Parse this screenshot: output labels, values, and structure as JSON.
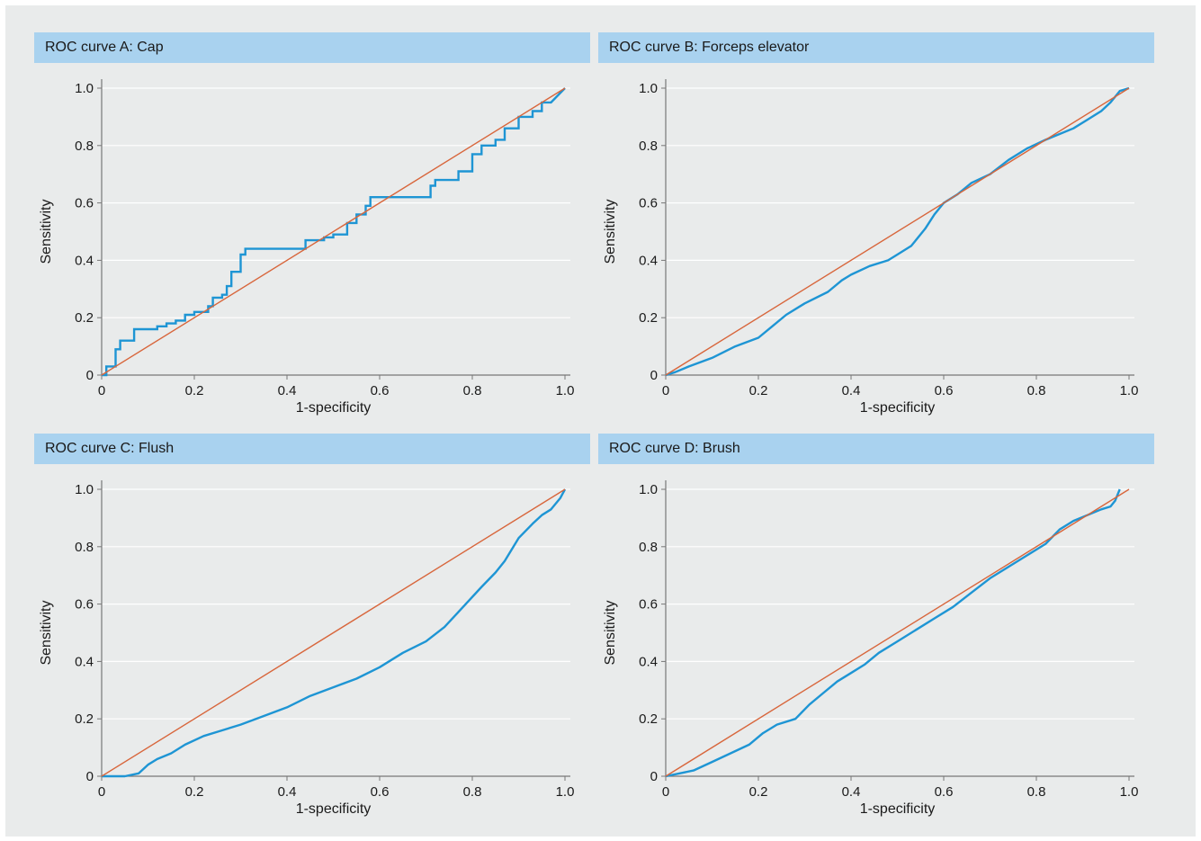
{
  "colors": {
    "curve": "#1e95d4",
    "reference": "#d8663c",
    "header": "#a9d2ef",
    "background": "#e9ebeb",
    "grid": "#ffffff"
  },
  "chart_data": [
    {
      "type": "line",
      "title": "ROC curve A: Cap",
      "xlabel": "1-specificity",
      "ylabel": "Sensitivity",
      "xlim": [
        0,
        1
      ],
      "ylim": [
        0,
        1
      ],
      "xticks": [
        "0",
        "0.2",
        "0.4",
        "0.6",
        "0.8",
        "1.0"
      ],
      "yticks": [
        "0",
        "0.2",
        "0.4",
        "0.6",
        "0.8",
        "1.0"
      ],
      "grid": true,
      "step": true,
      "series": [
        {
          "role": "roc",
          "x": [
            0,
            0.01,
            0.01,
            0.03,
            0.03,
            0.04,
            0.04,
            0.07,
            0.07,
            0.08,
            0.08,
            0.12,
            0.12,
            0.14,
            0.14,
            0.16,
            0.16,
            0.18,
            0.18,
            0.2,
            0.2,
            0.23,
            0.23,
            0.24,
            0.24,
            0.26,
            0.26,
            0.27,
            0.27,
            0.28,
            0.28,
            0.3,
            0.3,
            0.31,
            0.31,
            0.44,
            0.44,
            0.48,
            0.48,
            0.5,
            0.5,
            0.53,
            0.53,
            0.55,
            0.55,
            0.57,
            0.57,
            0.58,
            0.58,
            0.6,
            0.6,
            0.71,
            0.71,
            0.72,
            0.72,
            0.77,
            0.77,
            0.8,
            0.8,
            0.82,
            0.82,
            0.85,
            0.85,
            0.87,
            0.87,
            0.9,
            0.9,
            0.93,
            0.93,
            0.95,
            0.95,
            0.97,
            1.0
          ],
          "y": [
            0,
            0,
            0.03,
            0.03,
            0.09,
            0.09,
            0.12,
            0.12,
            0.16,
            0.16,
            0.16,
            0.16,
            0.17,
            0.17,
            0.18,
            0.18,
            0.19,
            0.19,
            0.21,
            0.21,
            0.22,
            0.22,
            0.24,
            0.24,
            0.27,
            0.27,
            0.28,
            0.28,
            0.31,
            0.31,
            0.36,
            0.36,
            0.42,
            0.42,
            0.44,
            0.44,
            0.47,
            0.47,
            0.48,
            0.48,
            0.49,
            0.49,
            0.53,
            0.53,
            0.56,
            0.56,
            0.59,
            0.59,
            0.62,
            0.62,
            0.62,
            0.62,
            0.66,
            0.66,
            0.68,
            0.68,
            0.71,
            0.71,
            0.77,
            0.77,
            0.8,
            0.8,
            0.82,
            0.82,
            0.86,
            0.86,
            0.9,
            0.9,
            0.92,
            0.92,
            0.95,
            0.95,
            1.0
          ]
        },
        {
          "role": "reference",
          "x": [
            0,
            1
          ],
          "y": [
            0,
            1
          ]
        }
      ]
    },
    {
      "type": "line",
      "title": "ROC curve B: Forceps elevator",
      "xlabel": "1-specificity",
      "ylabel": "Sensitivity",
      "xlim": [
        0,
        1
      ],
      "ylim": [
        0,
        1
      ],
      "xticks": [
        "0",
        "0.2",
        "0.4",
        "0.6",
        "0.8",
        "1.0"
      ],
      "yticks": [
        "0",
        "0.2",
        "0.4",
        "0.6",
        "0.8",
        "1.0"
      ],
      "grid": true,
      "step": false,
      "series": [
        {
          "role": "roc",
          "x": [
            0,
            0.02,
            0.05,
            0.1,
            0.15,
            0.2,
            0.23,
            0.26,
            0.3,
            0.35,
            0.38,
            0.4,
            0.44,
            0.48,
            0.5,
            0.53,
            0.56,
            0.58,
            0.6,
            0.63,
            0.66,
            0.7,
            0.74,
            0.78,
            0.82,
            0.85,
            0.88,
            0.91,
            0.94,
            0.96,
            0.98,
            1.0
          ],
          "y": [
            0,
            0.01,
            0.03,
            0.06,
            0.1,
            0.13,
            0.17,
            0.21,
            0.25,
            0.29,
            0.33,
            0.35,
            0.38,
            0.4,
            0.42,
            0.45,
            0.51,
            0.56,
            0.6,
            0.63,
            0.67,
            0.7,
            0.75,
            0.79,
            0.82,
            0.84,
            0.86,
            0.89,
            0.92,
            0.95,
            0.99,
            1.0
          ]
        },
        {
          "role": "reference",
          "x": [
            0,
            1
          ],
          "y": [
            0,
            1
          ]
        }
      ]
    },
    {
      "type": "line",
      "title": "ROC curve C: Flush",
      "xlabel": "1-specificity",
      "ylabel": "Sensitivity",
      "xlim": [
        0,
        1
      ],
      "ylim": [
        0,
        1
      ],
      "xticks": [
        "0",
        "0.2",
        "0.4",
        "0.6",
        "0.8",
        "1.0"
      ],
      "yticks": [
        "0",
        "0.2",
        "0.4",
        "0.6",
        "0.8",
        "1.0"
      ],
      "grid": true,
      "step": false,
      "series": [
        {
          "role": "roc",
          "x": [
            0,
            0.05,
            0.08,
            0.1,
            0.12,
            0.15,
            0.18,
            0.22,
            0.26,
            0.3,
            0.35,
            0.4,
            0.45,
            0.5,
            0.55,
            0.6,
            0.65,
            0.7,
            0.74,
            0.78,
            0.82,
            0.85,
            0.87,
            0.9,
            0.93,
            0.95,
            0.97,
            0.99,
            1.0
          ],
          "y": [
            0,
            0,
            0.01,
            0.04,
            0.06,
            0.08,
            0.11,
            0.14,
            0.16,
            0.18,
            0.21,
            0.24,
            0.28,
            0.31,
            0.34,
            0.38,
            0.43,
            0.47,
            0.52,
            0.59,
            0.66,
            0.71,
            0.75,
            0.83,
            0.88,
            0.91,
            0.93,
            0.97,
            1.0
          ]
        },
        {
          "role": "reference",
          "x": [
            0,
            1
          ],
          "y": [
            0,
            1
          ]
        }
      ]
    },
    {
      "type": "line",
      "title": "ROC curve D: Brush",
      "xlabel": "1-specificity",
      "ylabel": "Sensitivity",
      "xlim": [
        0,
        1
      ],
      "ylim": [
        0,
        1
      ],
      "xticks": [
        "0",
        "0.2",
        "0.4",
        "0.6",
        "0.8",
        "1.0"
      ],
      "yticks": [
        "0",
        "0.2",
        "0.4",
        "0.6",
        "0.8",
        "1.0"
      ],
      "grid": true,
      "step": false,
      "series": [
        {
          "role": "roc",
          "x": [
            0,
            0.03,
            0.06,
            0.1,
            0.14,
            0.18,
            0.21,
            0.24,
            0.28,
            0.31,
            0.34,
            0.37,
            0.4,
            0.43,
            0.46,
            0.5,
            0.54,
            0.58,
            0.62,
            0.66,
            0.7,
            0.74,
            0.78,
            0.82,
            0.85,
            0.88,
            0.91,
            0.94,
            0.96,
            0.97,
            0.98
          ],
          "y": [
            0,
            0.01,
            0.02,
            0.05,
            0.08,
            0.11,
            0.15,
            0.18,
            0.2,
            0.25,
            0.29,
            0.33,
            0.36,
            0.39,
            0.43,
            0.47,
            0.51,
            0.55,
            0.59,
            0.64,
            0.69,
            0.73,
            0.77,
            0.81,
            0.86,
            0.89,
            0.91,
            0.93,
            0.94,
            0.96,
            1.0
          ]
        },
        {
          "role": "reference",
          "x": [
            0,
            1
          ],
          "y": [
            0,
            1
          ]
        }
      ]
    }
  ]
}
